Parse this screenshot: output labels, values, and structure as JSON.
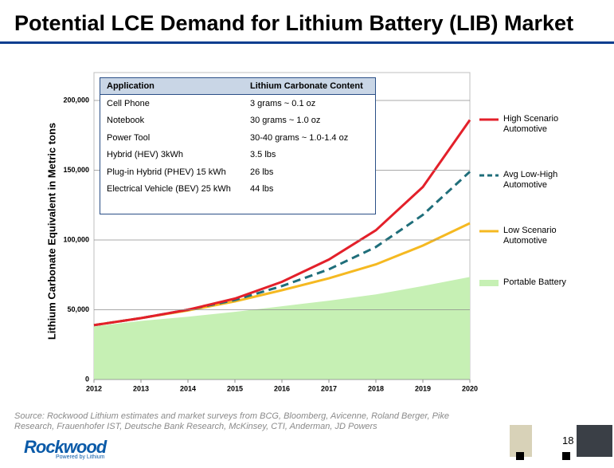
{
  "title": "Potential LCE Demand for Lithium Battery (LIB) Market",
  "chart_data": {
    "type": "line",
    "y_label": "Lithium Carbonate Equivalent in Metric tons",
    "x": [
      2012,
      2013,
      2014,
      2015,
      2016,
      2017,
      2018,
      2019,
      2020
    ],
    "xlim": [
      2012,
      2020
    ],
    "xticks": [
      2012,
      2013,
      2014,
      2015,
      2016,
      2017,
      2018,
      2019,
      2020
    ],
    "ylim": [
      0,
      220000
    ],
    "yticks": [
      0,
      {
        "value": 50000,
        "label": "50,000"
      },
      {
        "value": 100000,
        "label": "100,000"
      },
      {
        "value": 150000,
        "label": "150,000"
      },
      {
        "value": 200000,
        "label": "200,000"
      }
    ],
    "grid": true,
    "series": [
      {
        "name": "Portable Battery",
        "color": "#c6f0b4",
        "style": "area",
        "values": [
          38000,
          42000,
          45000,
          48500,
          52500,
          56500,
          61000,
          67000,
          73500
        ]
      },
      {
        "name": "Low Scenario Automotive",
        "color": "#f5b921",
        "style": "solid",
        "values": [
          39000,
          44000,
          49500,
          56000,
          64000,
          72500,
          82500,
          96000,
          112000
        ]
      },
      {
        "name": "Avg Low-High Automotive",
        "color": "#1f6e7a",
        "style": "dashed",
        "values": [
          39000,
          44000,
          50000,
          57000,
          67000,
          79000,
          95000,
          118000,
          149000
        ]
      },
      {
        "name": "High Scenario Automotive",
        "color": "#e3202a",
        "style": "solid",
        "values": [
          39000,
          44000,
          50000,
          58000,
          70000,
          86000,
          107000,
          138000,
          186000
        ]
      }
    ]
  },
  "table": {
    "header": [
      "Application",
      "Lithium Carbonate Content"
    ],
    "rows": [
      [
        "Cell Phone",
        "3 grams ~ 0.1 oz"
      ],
      [
        "Notebook",
        "30 grams ~ 1.0 oz"
      ],
      [
        "Power Tool",
        "30-40 grams ~ 1.0-1.4 oz"
      ],
      [
        "Hybrid (HEV) 3kWh",
        "3.5 lbs"
      ],
      [
        "Plug-in Hybrid (PHEV) 15 kWh",
        "26 lbs"
      ],
      [
        "Electrical Vehicle (BEV) 25 kWh",
        "44 lbs"
      ]
    ]
  },
  "source": "Source: Rockwood Lithium estimates and market surveys from BCG, Bloomberg, Avicenne, Roland Berger, Pike Research, Frauenhofer IST, Deutsche Bank Research, McKinsey, CTI, Anderman, JD Powers",
  "page_number": 18,
  "logo": {
    "name": "Rockwood",
    "tagline": "Powered by Lithium"
  }
}
